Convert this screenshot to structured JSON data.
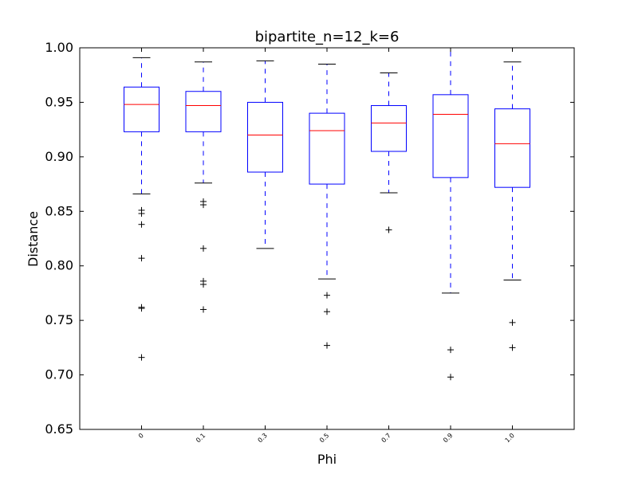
{
  "chart_data": {
    "type": "box",
    "title": "bipartite_n=12_k=6",
    "xlabel": "Phi",
    "ylabel": "Distance",
    "ylim": [
      0.65,
      1.0
    ],
    "yticks": [
      "0.65",
      "0.70",
      "0.75",
      "0.80",
      "0.85",
      "0.90",
      "0.95",
      "1.00"
    ],
    "categories": [
      "0",
      "0.1",
      "0.3",
      "0.5",
      "0.7",
      "0.9",
      "1.0"
    ],
    "boxes": [
      {
        "whisker_low": 0.866,
        "q1": 0.923,
        "median": 0.948,
        "q3": 0.964,
        "whisker_high": 0.991,
        "outliers": [
          0.851,
          0.848,
          0.838,
          0.807,
          0.762,
          0.761,
          0.716
        ]
      },
      {
        "whisker_low": 0.876,
        "q1": 0.923,
        "median": 0.947,
        "q3": 0.96,
        "whisker_high": 0.987,
        "outliers": [
          0.859,
          0.856,
          0.816,
          0.786,
          0.783,
          0.76
        ]
      },
      {
        "whisker_low": 0.816,
        "q1": 0.886,
        "median": 0.92,
        "q3": 0.95,
        "whisker_high": 0.988,
        "outliers": []
      },
      {
        "whisker_low": 0.788,
        "q1": 0.875,
        "median": 0.924,
        "q3": 0.94,
        "whisker_high": 0.985,
        "outliers": [
          0.773,
          0.758,
          0.727
        ]
      },
      {
        "whisker_low": 0.867,
        "q1": 0.905,
        "median": 0.931,
        "q3": 0.947,
        "whisker_high": 0.977,
        "outliers": [
          0.833
        ]
      },
      {
        "whisker_low": 0.775,
        "q1": 0.881,
        "median": 0.939,
        "q3": 0.957,
        "whisker_high": 1.0,
        "outliers": [
          0.723,
          0.698
        ]
      },
      {
        "whisker_low": 0.787,
        "q1": 0.872,
        "median": 0.912,
        "q3": 0.944,
        "whisker_high": 0.987,
        "outliers": [
          0.748,
          0.725
        ]
      }
    ],
    "colors": {
      "box": "#0000ff",
      "whisker": "#0000ff",
      "cap": "#000000",
      "median": "#ff0000",
      "outlier": "#000000"
    },
    "grid": false
  }
}
